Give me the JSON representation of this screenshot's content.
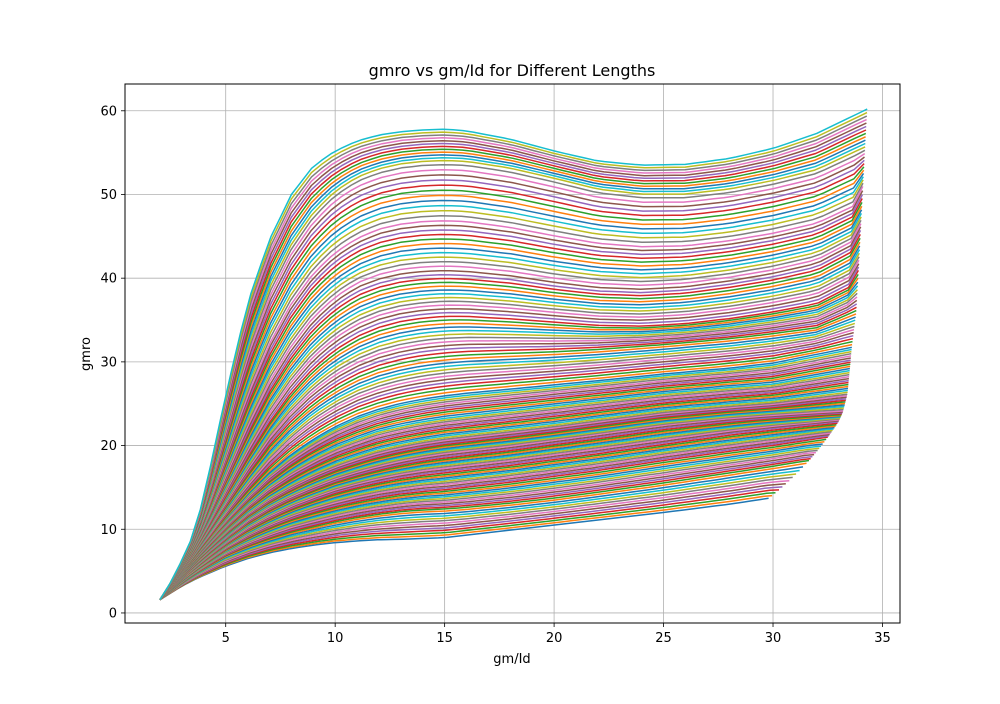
{
  "chart_data": {
    "type": "line",
    "title": "gmro vs gm/Id for Different Lengths",
    "xlabel": "gm/Id",
    "ylabel": "gmro",
    "xlim": [
      0.4,
      35.8
    ],
    "ylim": [
      -1.2,
      63.2
    ],
    "xticks": [
      5,
      10,
      15,
      20,
      25,
      30,
      35
    ],
    "yticks": [
      0,
      10,
      20,
      30,
      40,
      50,
      60
    ],
    "grid": true,
    "legend": "none",
    "line_count": 150,
    "colors": [
      "#1f77b4",
      "#ff7f0e",
      "#2ca02c",
      "#d62728",
      "#9467bd",
      "#8c564b",
      "#e377c2",
      "#7f7f7f",
      "#bcbd22",
      "#17becf"
    ],
    "series": [
      {
        "x": [
          2.0,
          2.5,
          3.0,
          3.5,
          4.0,
          5.0,
          6.0,
          7.0,
          8.0,
          9.0,
          10.0,
          11.0,
          12.0,
          13.0,
          14.0,
          15.0,
          16.0,
          18.0,
          20.0,
          22.0,
          25.0,
          28.0,
          29.8
        ],
        "y": [
          1.6,
          2.4,
          3.2,
          3.9,
          4.5,
          5.6,
          6.5,
          7.2,
          7.7,
          8.1,
          8.4,
          8.6,
          8.75,
          8.8,
          8.9,
          9.0,
          9.3,
          9.9,
          10.5,
          11.1,
          12.0,
          13.0,
          13.7
        ]
      },
      {
        "x": [
          2.0,
          2.5,
          3.0,
          3.5,
          4.0,
          5.0,
          6.0,
          7.0,
          8.0,
          9.0,
          10.0,
          11.0,
          12.0,
          13.0,
          14.0,
          15.0,
          16.0,
          18.0,
          20.0,
          22.0,
          25.0,
          28.0,
          30.0,
          31.6
        ],
        "y": [
          1.6,
          2.6,
          3.6,
          4.5,
          5.3,
          6.8,
          7.9,
          8.8,
          9.6,
          10.2,
          10.8,
          11.3,
          11.7,
          12.0,
          12.2,
          12.3,
          12.5,
          13.0,
          13.6,
          14.3,
          15.4,
          16.6,
          17.4,
          18.1
        ]
      },
      {
        "x": [
          2.0,
          2.5,
          3.0,
          3.5,
          4.0,
          5.0,
          6.0,
          7.0,
          8.0,
          9.0,
          10.0,
          11.0,
          12.0,
          13.0,
          14.0,
          15.0,
          16.0,
          18.0,
          20.0,
          22.0,
          25.0,
          28.0,
          30.0,
          32.5
        ],
        "y": [
          1.6,
          2.8,
          3.9,
          4.9,
          5.8,
          7.6,
          9.0,
          10.2,
          11.2,
          12.0,
          12.7,
          13.3,
          13.8,
          14.2,
          14.5,
          14.7,
          15.0,
          15.6,
          16.3,
          17.0,
          18.2,
          19.3,
          20.0,
          21.0
        ]
      },
      {
        "x": [
          2.0,
          2.5,
          3.0,
          3.5,
          4.0,
          5.0,
          6.0,
          7.0,
          8.0,
          9.0,
          10.0,
          11.0,
          12.0,
          13.0,
          14.0,
          15.0,
          16.0,
          18.0,
          20.0,
          22.0,
          25.0,
          28.0,
          30.0,
          33.0
        ],
        "y": [
          1.6,
          2.9,
          4.1,
          5.2,
          6.3,
          8.3,
          10.0,
          11.4,
          12.6,
          13.6,
          14.5,
          15.2,
          15.8,
          16.3,
          16.7,
          17.0,
          17.3,
          17.9,
          18.6,
          19.3,
          20.4,
          21.5,
          22.1,
          22.9
        ]
      },
      {
        "x": [
          2.0,
          2.5,
          3.0,
          3.5,
          4.0,
          5.0,
          6.0,
          7.0,
          8.0,
          9.0,
          10.0,
          11.0,
          12.0,
          13.0,
          14.0,
          15.0,
          16.0,
          18.0,
          20.0,
          22.0,
          25.0,
          28.0,
          30.0,
          33.2
        ],
        "y": [
          1.6,
          3.0,
          4.3,
          5.6,
          6.8,
          9.0,
          11.0,
          12.6,
          13.9,
          15.0,
          16.0,
          16.8,
          17.5,
          18.1,
          18.6,
          19.0,
          19.3,
          19.9,
          20.6,
          21.3,
          22.4,
          23.2,
          23.6,
          24.1
        ]
      },
      {
        "x": [
          2.0,
          2.5,
          3.0,
          3.5,
          4.0,
          5.0,
          6.0,
          7.0,
          8.0,
          9.0,
          10.0,
          11.0,
          12.0,
          13.0,
          14.0,
          15.0,
          16.0,
          18.0,
          20.0,
          22.0,
          25.0,
          28.0,
          30.0,
          33.4
        ],
        "y": [
          1.6,
          3.1,
          4.5,
          5.9,
          7.2,
          9.7,
          11.9,
          13.7,
          15.2,
          16.5,
          17.6,
          18.5,
          19.3,
          19.9,
          20.4,
          20.8,
          21.1,
          21.7,
          22.3,
          23.0,
          24.0,
          24.7,
          25.1,
          26.2
        ]
      },
      {
        "x": [
          2.0,
          2.5,
          3.0,
          3.5,
          4.0,
          5.0,
          6.0,
          7.0,
          8.0,
          9.0,
          10.0,
          11.0,
          12.0,
          13.0,
          14.0,
          15.0,
          16.0,
          18.0,
          20.0,
          22.0,
          25.0,
          28.0,
          30.0,
          33.5
        ],
        "y": [
          1.6,
          3.1,
          4.7,
          6.2,
          7.7,
          10.5,
          13.0,
          15.2,
          17.0,
          18.5,
          19.8,
          20.8,
          21.7,
          22.3,
          22.8,
          23.2,
          23.5,
          24.1,
          24.7,
          25.3,
          26.2,
          26.9,
          27.3,
          28.9
        ]
      },
      {
        "x": [
          2.0,
          2.5,
          3.0,
          3.5,
          4.0,
          5.0,
          6.0,
          7.0,
          8.0,
          9.0,
          10.0,
          11.0,
          12.0,
          13.0,
          14.0,
          15.0,
          16.0,
          18.0,
          20.0,
          22.0,
          25.0,
          28.0,
          30.0,
          33.6
        ],
        "y": [
          1.6,
          3.2,
          4.9,
          6.5,
          8.1,
          11.3,
          14.2,
          16.8,
          19.0,
          20.8,
          22.3,
          23.5,
          24.4,
          25.1,
          25.6,
          26.0,
          26.3,
          26.8,
          27.3,
          27.8,
          28.6,
          29.3,
          29.9,
          31.8
        ]
      },
      {
        "x": [
          2.0,
          2.5,
          3.0,
          3.5,
          4.0,
          5.0,
          6.0,
          7.0,
          8.0,
          9.0,
          10.0,
          11.0,
          12.0,
          13.0,
          14.0,
          15.0,
          16.0,
          18.0,
          20.0,
          22.0,
          25.0,
          28.0,
          30.0,
          32.0,
          33.8
        ],
        "y": [
          1.6,
          3.3,
          5.0,
          6.9,
          8.8,
          12.6,
          16.3,
          19.7,
          22.5,
          24.8,
          26.6,
          28.0,
          29.0,
          29.7,
          30.2,
          30.5,
          30.7,
          30.9,
          31.1,
          31.4,
          32.0,
          32.7,
          33.3,
          34.0,
          36.0
        ]
      },
      {
        "x": [
          2.0,
          2.5,
          3.0,
          3.5,
          4.0,
          5.0,
          6.0,
          7.0,
          8.0,
          9.0,
          10.0,
          11.0,
          12.0,
          13.0,
          14.0,
          15.0,
          16.0,
          18.0,
          20.0,
          22.0,
          24.0,
          26.0,
          28.0,
          30.0,
          32.0,
          33.5,
          33.9
        ],
        "y": [
          1.6,
          3.3,
          5.2,
          7.2,
          9.4,
          14.0,
          18.6,
          22.8,
          26.4,
          29.3,
          31.5,
          33.1,
          34.2,
          34.9,
          35.3,
          35.5,
          35.5,
          35.2,
          34.8,
          34.4,
          34.3,
          34.6,
          35.2,
          36.0,
          37.0,
          39.0,
          41.0
        ]
      },
      {
        "x": [
          2.0,
          2.5,
          3.0,
          3.5,
          4.0,
          5.0,
          6.0,
          7.0,
          8.0,
          9.0,
          10.0,
          11.0,
          12.0,
          13.0,
          14.0,
          15.0,
          16.0,
          18.0,
          20.0,
          22.0,
          24.0,
          26.0,
          28.0,
          30.0,
          32.0,
          33.6,
          34.0
        ],
        "y": [
          1.6,
          3.4,
          5.5,
          7.6,
          10.2,
          16.0,
          21.8,
          27.0,
          31.2,
          34.6,
          37.0,
          38.7,
          39.7,
          40.3,
          40.6,
          40.7,
          40.6,
          40.1,
          39.3,
          38.7,
          38.5,
          38.8,
          39.5,
          40.4,
          41.6,
          43.8,
          46.0
        ]
      },
      {
        "x": [
          2.0,
          2.5,
          3.0,
          3.5,
          4.0,
          5.0,
          6.0,
          7.0,
          8.0,
          9.0,
          10.0,
          11.0,
          12.0,
          13.0,
          14.0,
          15.0,
          16.0,
          18.0,
          20.0,
          22.0,
          24.0,
          26.0,
          28.0,
          30.0,
          32.0,
          33.8,
          34.1
        ],
        "y": [
          1.6,
          3.5,
          5.7,
          8.0,
          11.2,
          18.6,
          26.0,
          32.2,
          37.0,
          40.6,
          43.1,
          44.8,
          45.9,
          46.5,
          46.8,
          46.9,
          46.8,
          46.1,
          45.1,
          44.2,
          43.8,
          43.9,
          44.5,
          45.4,
          46.6,
          48.8,
          51.0
        ]
      },
      {
        "x": [
          2.0,
          2.5,
          3.0,
          3.5,
          4.0,
          5.0,
          6.0,
          7.0,
          8.0,
          9.0,
          10.0,
          11.0,
          12.0,
          13.0,
          14.0,
          15.0,
          16.0,
          18.0,
          20.0,
          22.0,
          24.0,
          26.0,
          28.0,
          30.0,
          32.0,
          34.2
        ],
        "y": [
          1.6,
          3.6,
          6.0,
          8.6,
          12.4,
          22.0,
          31.4,
          38.6,
          43.8,
          47.6,
          50.2,
          51.9,
          52.9,
          53.5,
          53.8,
          53.9,
          53.8,
          53.0,
          51.8,
          50.5,
          49.9,
          49.9,
          50.5,
          51.5,
          52.8,
          55.5
        ]
      },
      {
        "x": [
          2.0,
          2.5,
          3.0,
          3.5,
          4.0,
          5.0,
          6.0,
          7.0,
          8.0,
          9.0,
          10.0,
          11.0,
          12.0,
          13.0,
          14.0,
          15.0,
          16.0,
          18.0,
          20.0,
          22.0,
          24.0,
          26.0,
          28.0,
          30.0,
          32.0,
          34.3
        ],
        "y": [
          1.6,
          3.7,
          6.3,
          9.2,
          13.8,
          26.0,
          37.0,
          44.6,
          50.0,
          53.4,
          55.2,
          56.4,
          57.1,
          57.5,
          57.7,
          57.8,
          57.6,
          56.6,
          55.2,
          54.0,
          53.5,
          53.6,
          54.3,
          55.5,
          57.3,
          60.2
        ]
      }
    ]
  }
}
